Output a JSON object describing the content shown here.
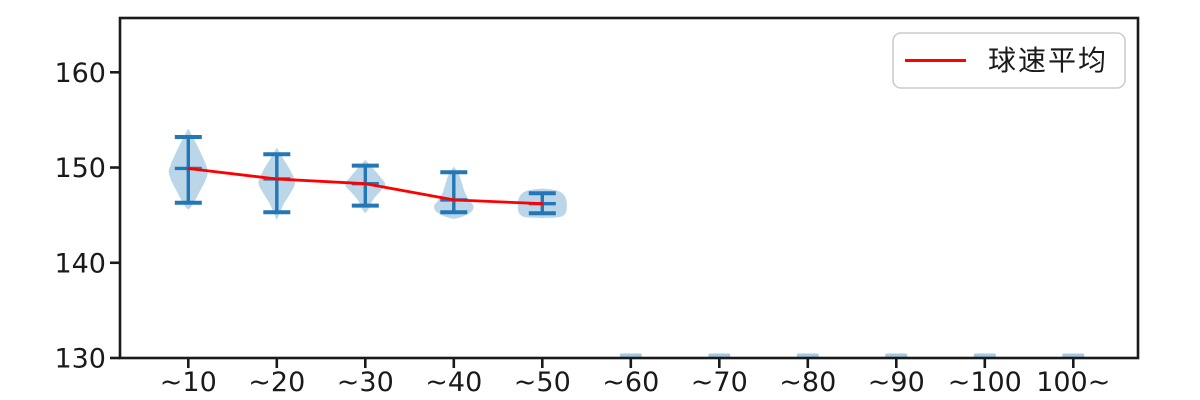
{
  "chart_data": {
    "type": "violin",
    "title": "",
    "xlabel": "",
    "ylabel": "",
    "categories": [
      "~10",
      "~20",
      "~30",
      "~40",
      "~50",
      "~60",
      "~70",
      "~80",
      "~90",
      "~100",
      "100~"
    ],
    "yticks": [
      130,
      140,
      150,
      160
    ],
    "ylim": [
      130,
      165.7
    ],
    "grid": false,
    "legend": {
      "label": "球速平均",
      "position": "upper-right"
    },
    "series": [
      {
        "name": "球速平均",
        "type": "line",
        "color": "#ff0000",
        "x": [
          "~10",
          "~20",
          "~30",
          "~40",
          "~50"
        ],
        "values": [
          149.9,
          148.8,
          148.3,
          146.6,
          146.2
        ]
      }
    ],
    "violins": [
      {
        "category": "~10",
        "min": 146.3,
        "max": 153.2,
        "mean": 149.9,
        "profile": [
          [
            154.1,
            0
          ],
          [
            152.5,
            8
          ],
          [
            151.2,
            14
          ],
          [
            150.2,
            18
          ],
          [
            149.5,
            19.5
          ],
          [
            148.6,
            17
          ],
          [
            147.6,
            12
          ],
          [
            146.6,
            7
          ],
          [
            145.9,
            3
          ],
          [
            145.6,
            0
          ]
        ]
      },
      {
        "category": "~20",
        "min": 145.3,
        "max": 151.4,
        "mean": 148.8,
        "profile": [
          [
            152.1,
            0
          ],
          [
            151.0,
            6
          ],
          [
            149.8,
            13
          ],
          [
            148.8,
            17.5
          ],
          [
            148.2,
            18
          ],
          [
            147.2,
            13
          ],
          [
            146.2,
            7
          ],
          [
            145.2,
            3
          ],
          [
            144.5,
            0
          ]
        ]
      },
      {
        "category": "~30",
        "min": 146.0,
        "max": 150.2,
        "mean": 148.3,
        "profile": [
          [
            150.8,
            0
          ],
          [
            150.0,
            7
          ],
          [
            149.0,
            15
          ],
          [
            148.2,
            20
          ],
          [
            147.4,
            14
          ],
          [
            146.5,
            7
          ],
          [
            145.6,
            3
          ],
          [
            145.2,
            0
          ]
        ]
      },
      {
        "category": "~40",
        "min": 145.3,
        "max": 149.5,
        "mean": 146.6,
        "profile": [
          [
            150.1,
            0
          ],
          [
            149.3,
            5
          ],
          [
            148.4,
            8
          ],
          [
            147.4,
            11
          ],
          [
            146.6,
            15
          ],
          [
            146.0,
            19.5
          ],
          [
            145.4,
            18
          ],
          [
            144.9,
            10
          ],
          [
            144.6,
            0
          ]
        ]
      },
      {
        "category": "~50",
        "min": 145.2,
        "max": 147.3,
        "mean": 146.2,
        "profile": [
          [
            147.8,
            0
          ],
          [
            147.6,
            14
          ],
          [
            147.2,
            21
          ],
          [
            146.6,
            24
          ],
          [
            146.0,
            24.5
          ],
          [
            145.4,
            24
          ],
          [
            144.95,
            21
          ],
          [
            144.75,
            14
          ],
          [
            144.7,
            0
          ]
        ]
      }
    ],
    "empty_categories": [
      "~60",
      "~70",
      "~80",
      "~90",
      "~100",
      "100~"
    ]
  },
  "style": {
    "violin_fill": "#1f77b4",
    "violin_fill_opacity": 0.3,
    "violin_line": "#2277b4",
    "mean_line_color": "#ff0000",
    "axis_color": "#1a1a1a",
    "legend_border": "#cccccc",
    "background": "#ffffff"
  }
}
